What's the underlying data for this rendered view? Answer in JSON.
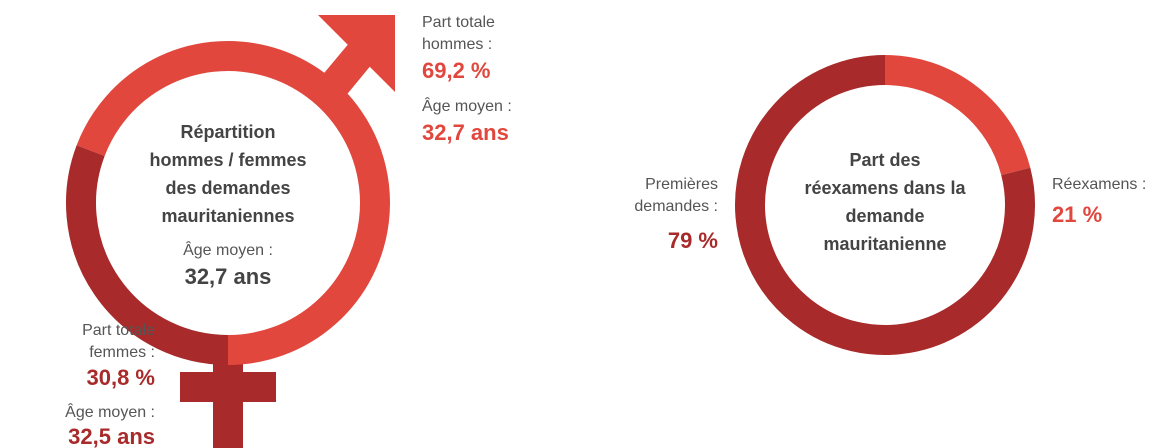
{
  "chart_data": [
    {
      "type": "gender-ring",
      "title": "Répartition hommes / femmes des demandes mauritaniennes",
      "overall_age_caption": "Âge moyen :",
      "overall_age_label": "32,7 ans",
      "categories": [
        "Part totale hommes :",
        "Part totale femmes :"
      ],
      "values": [
        69.2,
        30.8
      ],
      "value_labels": [
        "69,2 %",
        "30,8 %"
      ],
      "colors": [
        "#e1473d",
        "#a82a2a"
      ],
      "age_captions": [
        "Âge moyen :",
        "Âge moyen :"
      ],
      "age_labels": [
        "32,7 ans",
        "32,5 ans"
      ]
    },
    {
      "type": "donut",
      "title": "Part des réexamens dans la demande mauritanienne",
      "categories": [
        "Réexamens :",
        "Premières demandes :"
      ],
      "values": [
        21,
        79
      ],
      "value_labels": [
        "21 %",
        "79 %"
      ],
      "colors": [
        "#e1473d",
        "#a82a2a"
      ]
    }
  ]
}
